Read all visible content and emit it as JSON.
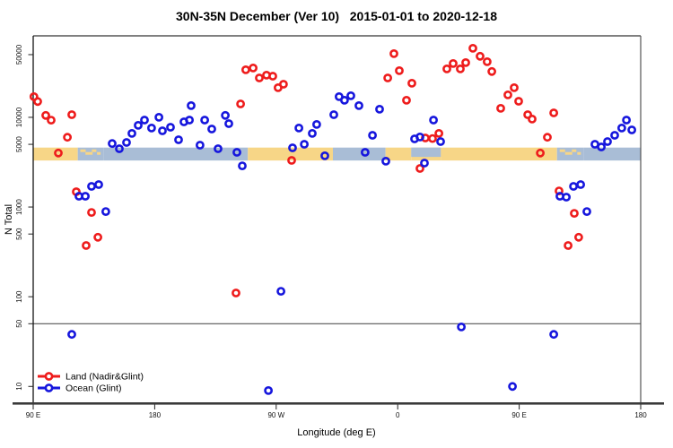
{
  "title": "30N-35N December (Ver 10)   2015-01-01 to 2020-12-18",
  "chart_data": {
    "type": "scatter",
    "title": "30N-35N December (Ver 10)   2015-01-01 to 2020-12-18",
    "xlabel": "Longitude (deg E)",
    "ylabel": "N Total",
    "x_axis": {
      "range": [
        90,
        540
      ],
      "ticks": [
        {
          "pos": 90,
          "label": "90 E"
        },
        {
          "pos": 180,
          "label": "180"
        },
        {
          "pos": 270,
          "label": "90 W"
        },
        {
          "pos": 360,
          "label": "0"
        },
        {
          "pos": 450,
          "label": "90 E"
        },
        {
          "pos": 540,
          "label": "180"
        }
      ]
    },
    "y_axis": {
      "scale": "log",
      "range": [
        6.5,
        81000
      ],
      "ticks": [
        10,
        50,
        100,
        500,
        1000,
        5000,
        10000,
        50000
      ]
    },
    "reference_line_y": 50,
    "legend": {
      "position": "bottom-left",
      "entries": [
        {
          "label": "Land (Nadir&Glint)",
          "color": "#ee1c1c"
        },
        {
          "label": "Ocean (Glint)",
          "color": "#1616dd"
        }
      ]
    },
    "surface_band": {
      "value_range": [
        3300,
        4600
      ],
      "colors": {
        "land": "#f7d687",
        "ocean": "#a9bdd6"
      },
      "segments": [
        {
          "from": 90,
          "to": 123,
          "surface": "land"
        },
        {
          "from": 123,
          "to": 142,
          "surface": "ocean_speckled"
        },
        {
          "from": 142,
          "to": 249,
          "surface": "ocean"
        },
        {
          "from": 249,
          "to": 312,
          "surface": "land"
        },
        {
          "from": 312,
          "to": 351,
          "surface": "ocean"
        },
        {
          "from": 351,
          "to": 370,
          "surface": "land"
        },
        {
          "from": 370,
          "to": 392,
          "surface": "ocean_inlet"
        },
        {
          "from": 392,
          "to": 478,
          "surface": "land"
        },
        {
          "from": 478,
          "to": 498,
          "surface": "ocean_speckled"
        },
        {
          "from": 498,
          "to": 540,
          "surface": "ocean"
        }
      ]
    },
    "series": [
      {
        "name": "Land (Nadir&Glint)",
        "color": "#ee1c1c",
        "marker": "open-circle",
        "points": [
          [
            90.5,
            17000
          ],
          [
            93.3,
            15000
          ],
          [
            99.3,
            10500
          ],
          [
            103.3,
            9300
          ],
          [
            118.6,
            10700
          ],
          [
            115.3,
            6000
          ],
          [
            108.6,
            4000
          ],
          [
            121.9,
            1480
          ],
          [
            133.2,
            870
          ],
          [
            137.9,
            460
          ],
          [
            129.2,
            372
          ],
          [
            240.2,
            110
          ],
          [
            243.6,
            14100
          ],
          [
            247.5,
            33900
          ],
          [
            252.9,
            35500
          ],
          [
            257.5,
            27500
          ],
          [
            262.8,
            29500
          ],
          [
            267.5,
            28800
          ],
          [
            271.4,
            21400
          ],
          [
            275.4,
            23400
          ],
          [
            281.4,
            3310
          ],
          [
            352.6,
            27500
          ],
          [
            357.2,
            51300
          ],
          [
            361.2,
            33100
          ],
          [
            366.5,
            15500
          ],
          [
            370.5,
            24000
          ],
          [
            376.5,
            2690
          ],
          [
            380.5,
            5890
          ],
          [
            385.8,
            5800
          ],
          [
            390.5,
            6610
          ],
          [
            396.4,
            34700
          ],
          [
            401.1,
            39800
          ],
          [
            406.4,
            34700
          ],
          [
            410.4,
            40700
          ],
          [
            415.7,
            58900
          ],
          [
            421.0,
            47900
          ],
          [
            426.3,
            41700
          ],
          [
            429.7,
            32400
          ],
          [
            436.3,
            12600
          ],
          [
            441.6,
            17800
          ],
          [
            446.3,
            21400
          ],
          [
            449.6,
            15100
          ],
          [
            456.3,
            10700
          ],
          [
            459.6,
            9550
          ],
          [
            465.6,
            4000
          ],
          [
            470.9,
            6000
          ],
          [
            475.6,
            11200
          ],
          [
            479.5,
            1510
          ],
          [
            486.2,
            372
          ],
          [
            490.8,
            850
          ],
          [
            494.1,
            460
          ]
        ]
      },
      {
        "name": "Ocean (Glint)",
        "color": "#1616dd",
        "marker": "open-circle",
        "points": [
          [
            118.6,
            38
          ],
          [
            123.9,
            1320
          ],
          [
            128.6,
            1320
          ],
          [
            133.2,
            1700
          ],
          [
            138.5,
            1780
          ],
          [
            143.8,
            890
          ],
          [
            148.5,
            5100
          ],
          [
            153.8,
            4470
          ],
          [
            159.1,
            5250
          ],
          [
            163.1,
            6610
          ],
          [
            167.8,
            8130
          ],
          [
            172.4,
            9330
          ],
          [
            177.7,
            7590
          ],
          [
            183.1,
            10000
          ],
          [
            185.7,
            7080
          ],
          [
            191.7,
            7760
          ],
          [
            197.7,
            5620
          ],
          [
            201.7,
            8910
          ],
          [
            205.7,
            9330
          ],
          [
            207.0,
            13500
          ],
          [
            213.6,
            4900
          ],
          [
            217.0,
            9330
          ],
          [
            222.3,
            7410
          ],
          [
            226.9,
            4470
          ],
          [
            232.3,
            10500
          ],
          [
            234.9,
            8510
          ],
          [
            240.9,
            4070
          ],
          [
            244.9,
            2880
          ],
          [
            264.2,
            9
          ],
          [
            273.5,
            115
          ],
          [
            282.1,
            4570
          ],
          [
            286.8,
            7590
          ],
          [
            290.8,
            5010
          ],
          [
            296.7,
            6610
          ],
          [
            300.0,
            8320
          ],
          [
            306.0,
            3720
          ],
          [
            312.7,
            10700
          ],
          [
            316.6,
            17000
          ],
          [
            320.6,
            15500
          ],
          [
            325.3,
            17400
          ],
          [
            331.3,
            13500
          ],
          [
            335.9,
            4070
          ],
          [
            341.3,
            6310
          ],
          [
            346.6,
            12300
          ],
          [
            351.2,
            3240
          ],
          [
            372.5,
            5750
          ],
          [
            376.5,
            6030
          ],
          [
            379.8,
            3090
          ],
          [
            386.5,
            9330
          ],
          [
            391.8,
            5370
          ],
          [
            407.1,
            46
          ],
          [
            445.0,
            10
          ],
          [
            475.6,
            38
          ],
          [
            480.2,
            1320
          ],
          [
            484.9,
            1290
          ],
          [
            490.2,
            1700
          ],
          [
            495.5,
            1780
          ],
          [
            500.1,
            890
          ],
          [
            506.1,
            5010
          ],
          [
            510.8,
            4680
          ],
          [
            515.4,
            5370
          ],
          [
            520.7,
            6310
          ],
          [
            526.0,
            7590
          ],
          [
            529.4,
            9330
          ],
          [
            533.4,
            7240
          ]
        ]
      }
    ]
  }
}
